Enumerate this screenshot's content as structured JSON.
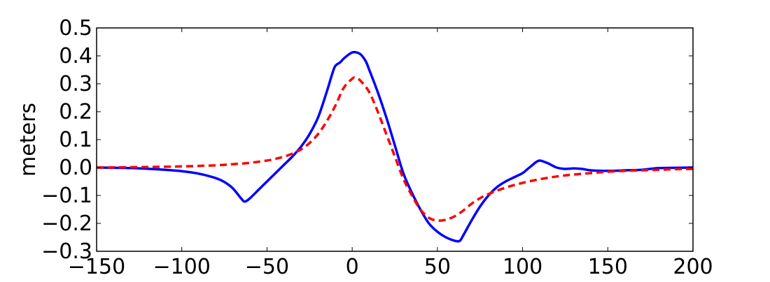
{
  "chart_data": {
    "type": "line",
    "title": "",
    "xlabel": "",
    "ylabel": "meters",
    "xlim": [
      -150,
      200
    ],
    "ylim": [
      -0.3,
      0.5
    ],
    "xticks": [
      -150,
      -100,
      -50,
      0,
      50,
      100,
      150,
      200
    ],
    "xtick_labels": [
      "−150",
      "−100",
      "−50",
      "0",
      "50",
      "100",
      "150",
      "200"
    ],
    "yticks": [
      -0.3,
      -0.2,
      -0.1,
      0.0,
      0.1,
      0.2,
      0.3,
      0.4,
      0.5
    ],
    "ytick_labels": [
      "−0.3",
      "−0.2",
      "−0.1",
      "0.0",
      "0.1",
      "0.2",
      "0.3",
      "0.4",
      "0.5"
    ],
    "grid": false,
    "legend": false,
    "series": [
      {
        "color": "#0000ff",
        "style": "solid",
        "x": [
          -150,
          -130,
          -110,
          -100,
          -90,
          -80,
          -75,
          -70,
          -65,
          -63,
          -60,
          -55,
          -50,
          -45,
          -40,
          -35,
          -30,
          -25,
          -20,
          -15,
          -12,
          -10,
          -7,
          -5,
          -2,
          0,
          2,
          5,
          8,
          10,
          15,
          20,
          25,
          30,
          35,
          40,
          45,
          50,
          55,
          60,
          63,
          65,
          70,
          75,
          80,
          85,
          90,
          95,
          100,
          103,
          106,
          108,
          110,
          112,
          115,
          120,
          125,
          130,
          135,
          140,
          150,
          160,
          170,
          180,
          190,
          200
        ],
        "y": [
          0.0,
          -0.002,
          -0.008,
          -0.013,
          -0.022,
          -0.038,
          -0.052,
          -0.075,
          -0.112,
          -0.122,
          -0.11,
          -0.08,
          -0.05,
          -0.02,
          0.01,
          0.04,
          0.075,
          0.12,
          0.18,
          0.27,
          0.33,
          0.363,
          0.377,
          0.39,
          0.405,
          0.412,
          0.413,
          0.405,
          0.38,
          0.35,
          0.27,
          0.18,
          0.08,
          -0.02,
          -0.09,
          -0.15,
          -0.2,
          -0.23,
          -0.25,
          -0.262,
          -0.263,
          -0.245,
          -0.19,
          -0.14,
          -0.1,
          -0.07,
          -0.05,
          -0.035,
          -0.02,
          -0.005,
          0.01,
          0.02,
          0.025,
          0.022,
          0.015,
          0.0,
          -0.005,
          -0.003,
          -0.005,
          -0.01,
          -0.012,
          -0.01,
          -0.008,
          -0.002,
          -0.001,
          0.0
        ]
      },
      {
        "color": "#ff0000",
        "style": "dashed",
        "x": [
          -150,
          -120,
          -100,
          -80,
          -70,
          -60,
          -50,
          -45,
          -40,
          -35,
          -30,
          -25,
          -20,
          -15,
          -10,
          -5,
          0,
          2,
          5,
          10,
          15,
          20,
          25,
          30,
          35,
          40,
          45,
          50,
          55,
          60,
          65,
          70,
          75,
          80,
          90,
          100,
          110,
          120,
          130,
          140,
          150,
          160,
          170,
          180,
          190,
          200
        ],
        "y": [
          0.0,
          0.002,
          0.004,
          0.008,
          0.012,
          0.017,
          0.025,
          0.031,
          0.039,
          0.05,
          0.065,
          0.088,
          0.12,
          0.165,
          0.22,
          0.285,
          0.318,
          0.322,
          0.31,
          0.27,
          0.2,
          0.12,
          0.04,
          -0.04,
          -0.1,
          -0.15,
          -0.18,
          -0.19,
          -0.187,
          -0.175,
          -0.155,
          -0.13,
          -0.11,
          -0.095,
          -0.072,
          -0.055,
          -0.042,
          -0.032,
          -0.025,
          -0.02,
          -0.015,
          -0.012,
          -0.01,
          -0.008,
          -0.006,
          -0.005
        ]
      }
    ]
  }
}
